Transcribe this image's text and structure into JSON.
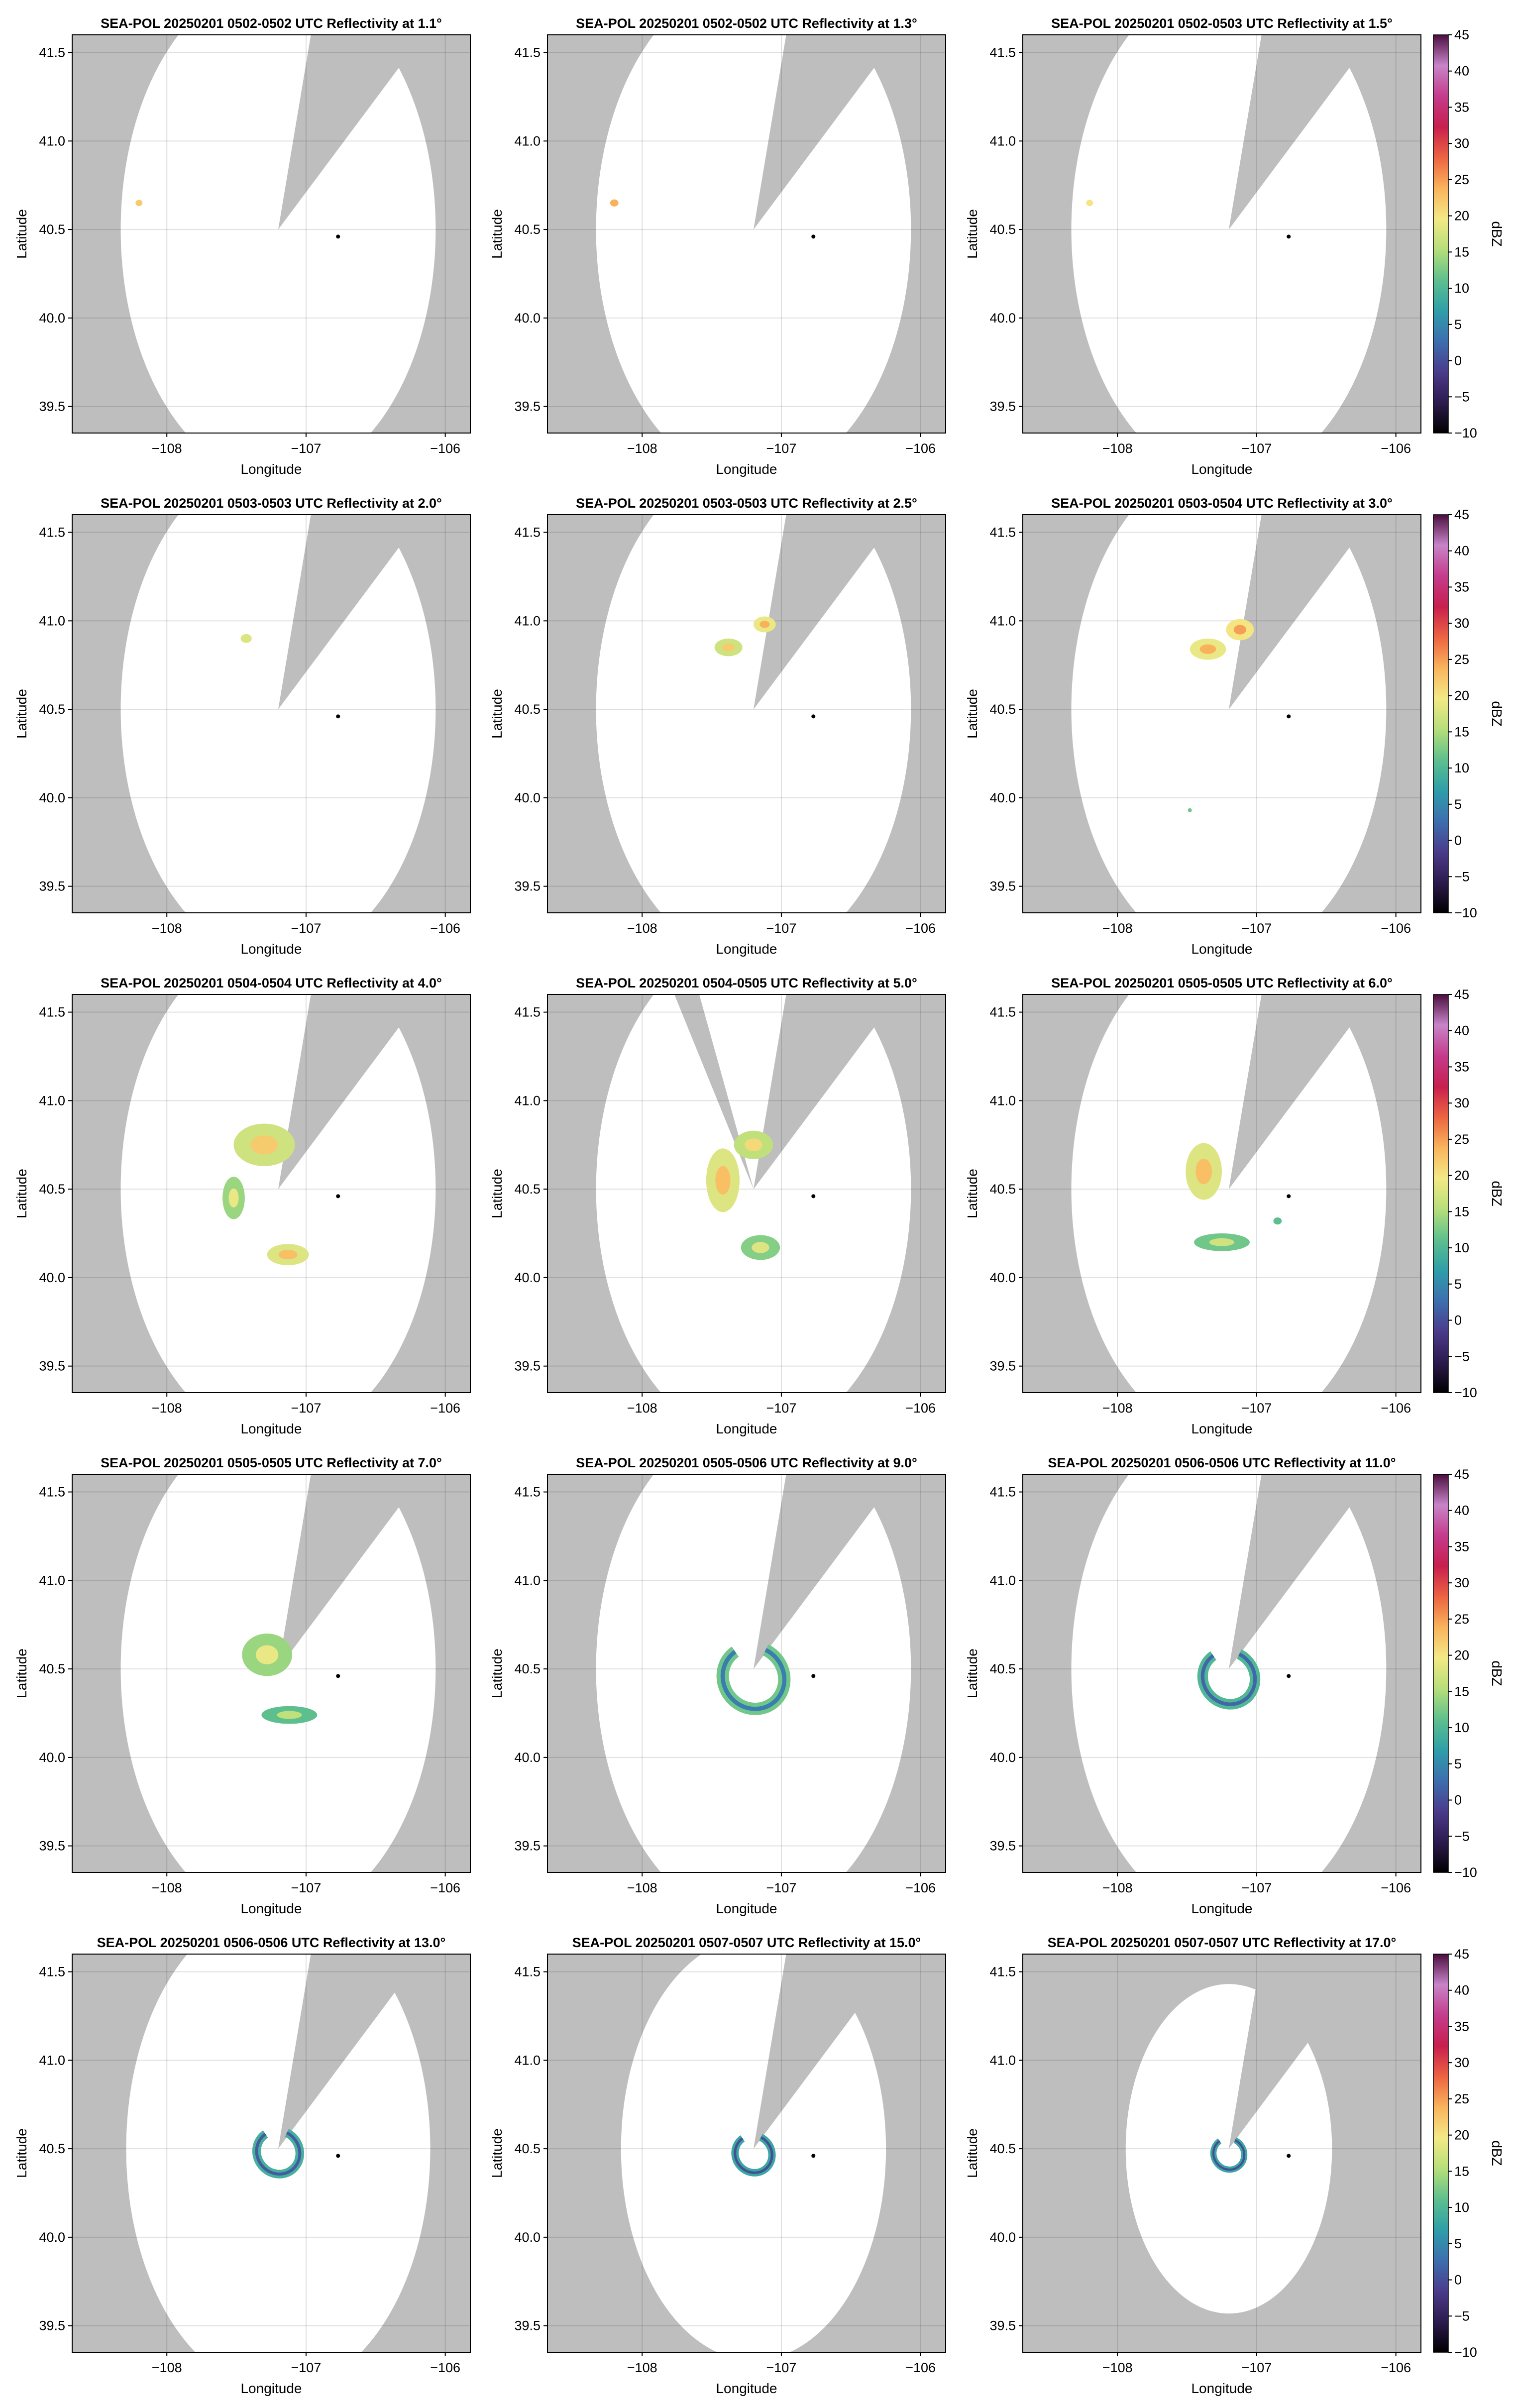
{
  "figure": {
    "xlabel": "Longitude",
    "ylabel": "Latitude",
    "xlim": [
      -108.68,
      -105.82
    ],
    "ylim": [
      39.35,
      41.6
    ],
    "x_ticks": [
      -108,
      -107,
      -106
    ],
    "x_tick_labels": [
      "−108",
      "−107",
      "−106"
    ],
    "y_ticks": [
      39.5,
      40.0,
      40.5,
      41.0,
      41.5
    ],
    "y_tick_labels": [
      "39.5",
      "40.0",
      "40.5",
      "41.0",
      "41.5"
    ],
    "background_color": "#bebebe",
    "coverage_color": "#ffffff",
    "grid": true,
    "radar_site": {
      "lon": -107.2,
      "lat": 40.5
    },
    "marker": {
      "lon": -106.77,
      "lat": 40.46
    },
    "blocked_sector_deg": [
      15,
      50
    ]
  },
  "colorbar": {
    "label": "dBZ",
    "min": -10,
    "max": 45,
    "ticks": [
      45,
      40,
      35,
      30,
      25,
      20,
      15,
      10,
      5,
      0,
      -5,
      -10
    ],
    "tick_labels": [
      "45",
      "40",
      "35",
      "30",
      "25",
      "20",
      "15",
      "10",
      "5",
      "0",
      "−5",
      "−10"
    ],
    "colormap_stops": [
      "#000000",
      "#2d1b4e",
      "#4a3c8c",
      "#3d6fb0",
      "#2f9fa8",
      "#5fc08d",
      "#b7df7a",
      "#f3e986",
      "#f9b45c",
      "#ec6442",
      "#c81f4e",
      "#c43c8c",
      "#c884c8",
      "#4a0e40"
    ]
  },
  "chart_data": [
    {
      "type": "heatmap",
      "title": "SEA-POL 20250201 0502-0502 UTC Reflectivity at 1.1°",
      "elevation_deg": 1.1,
      "echoes": [
        {
          "lon": -108.2,
          "lat": 40.65,
          "dlon": 0.025,
          "dlat": 0.018,
          "dbz": 22
        }
      ]
    },
    {
      "type": "heatmap",
      "title": "SEA-POL 20250201 0502-0502 UTC Reflectivity at 1.3°",
      "elevation_deg": 1.3,
      "echoes": [
        {
          "lon": -108.2,
          "lat": 40.65,
          "dlon": 0.03,
          "dlat": 0.02,
          "dbz": 24
        }
      ]
    },
    {
      "type": "heatmap",
      "title": "SEA-POL 20250201 0502-0503 UTC Reflectivity at 1.5°",
      "elevation_deg": 1.5,
      "echoes": [
        {
          "lon": -108.2,
          "lat": 40.65,
          "dlon": 0.025,
          "dlat": 0.018,
          "dbz": 20
        }
      ]
    },
    {
      "type": "heatmap",
      "title": "SEA-POL 20250201 0503-0503 UTC Reflectivity at 2.0°",
      "elevation_deg": 2.0,
      "echoes": [
        {
          "lon": -107.43,
          "lat": 40.9,
          "dlon": 0.04,
          "dlat": 0.025,
          "dbz": 18
        }
      ]
    },
    {
      "type": "heatmap",
      "title": "SEA-POL 20250201 0503-0503 UTC Reflectivity at 2.5°",
      "elevation_deg": 2.5,
      "echoes": [
        {
          "lon": -107.38,
          "lat": 40.85,
          "dlon": 0.1,
          "dlat": 0.05,
          "dbz": 17
        },
        {
          "lon": -107.12,
          "lat": 40.98,
          "dlon": 0.08,
          "dlat": 0.045,
          "dbz": 19
        }
      ]
    },
    {
      "type": "heatmap",
      "title": "SEA-POL 20250201 0503-0504 UTC Reflectivity at 3.0°",
      "elevation_deg": 3.0,
      "echoes": [
        {
          "lon": -107.35,
          "lat": 40.84,
          "dlon": 0.13,
          "dlat": 0.06,
          "dbz": 19
        },
        {
          "lon": -107.12,
          "lat": 40.95,
          "dlon": 0.1,
          "dlat": 0.06,
          "dbz": 20
        },
        {
          "lon": -107.48,
          "lat": 39.93,
          "dlon": 0.01,
          "dlat": 0.01,
          "dbz": 12
        }
      ]
    },
    {
      "type": "heatmap",
      "title": "SEA-POL 20250201 0504-0504 UTC Reflectivity at 4.0°",
      "elevation_deg": 4.0,
      "echoes": [
        {
          "lon": -107.3,
          "lat": 40.75,
          "dlon": 0.22,
          "dlat": 0.12,
          "dbz": 17
        },
        {
          "lon": -107.52,
          "lat": 40.45,
          "dlon": 0.08,
          "dlat": 0.12,
          "dbz": 14
        },
        {
          "lon": -107.13,
          "lat": 40.13,
          "dlon": 0.15,
          "dlat": 0.06,
          "dbz": 18
        }
      ]
    },
    {
      "type": "heatmap",
      "title": "SEA-POL 20250201 0504-0505 UTC Reflectivity at 5.0°",
      "elevation_deg": 5.0,
      "second_gap_deg": [
        -33,
        -24
      ],
      "echoes": [
        {
          "lon": -107.42,
          "lat": 40.55,
          "dlon": 0.12,
          "dlat": 0.18,
          "dbz": 18
        },
        {
          "lon": -107.2,
          "lat": 40.75,
          "dlon": 0.14,
          "dlat": 0.08,
          "dbz": 16
        },
        {
          "lon": -107.15,
          "lat": 40.17,
          "dlon": 0.14,
          "dlat": 0.07,
          "dbz": 13
        }
      ]
    },
    {
      "type": "heatmap",
      "title": "SEA-POL 20250201 0505-0505 UTC Reflectivity at 6.0°",
      "elevation_deg": 6.0,
      "echoes": [
        {
          "lon": -107.38,
          "lat": 40.6,
          "dlon": 0.13,
          "dlat": 0.16,
          "dbz": 18
        },
        {
          "lon": -107.25,
          "lat": 40.2,
          "dlon": 0.2,
          "dlat": 0.05,
          "dbz": 12
        },
        {
          "lon": -106.85,
          "lat": 40.32,
          "dlon": 0.03,
          "dlat": 0.02,
          "dbz": 11
        }
      ]
    },
    {
      "type": "heatmap",
      "title": "SEA-POL 20250201 0505-0505 UTC Reflectivity at 7.0°",
      "elevation_deg": 7.0,
      "echoes": [
        {
          "lon": -107.28,
          "lat": 40.58,
          "dlon": 0.18,
          "dlat": 0.12,
          "dbz": 14
        },
        {
          "lon": -107.12,
          "lat": 40.24,
          "dlon": 0.2,
          "dlat": 0.05,
          "dbz": 11
        }
      ]
    },
    {
      "type": "heatmap",
      "title": "SEA-POL 20250201 0505-0506 UTC Reflectivity at 9.0°",
      "elevation_deg": 9.0,
      "echoes": [
        {
          "lon": -107.2,
          "lat": 40.45,
          "radius_deg": 0.2,
          "ring": true,
          "dbz": 12
        }
      ]
    },
    {
      "type": "heatmap",
      "title": "SEA-POL 20250201 0506-0506 UTC Reflectivity at 11.0°",
      "elevation_deg": 11.0,
      "echoes": [
        {
          "lon": -107.2,
          "lat": 40.45,
          "radius_deg": 0.17,
          "ring": true,
          "dbz": 10
        }
      ]
    },
    {
      "type": "heatmap",
      "title": "SEA-POL 20250201 0506-0506 UTC Reflectivity at 13.0°",
      "elevation_deg": 13.0,
      "coverage_radius_deg": 1.4,
      "echoes": [
        {
          "lon": -107.2,
          "lat": 40.48,
          "radius_deg": 0.14,
          "ring": true,
          "dbz": 9
        }
      ]
    },
    {
      "type": "heatmap",
      "title": "SEA-POL 20250201 0507-0507 UTC Reflectivity at 15.0°",
      "elevation_deg": 15.0,
      "coverage_radius_deg": 1.22,
      "echoes": [
        {
          "lon": -107.2,
          "lat": 40.47,
          "radius_deg": 0.12,
          "ring": true,
          "dbz": 8
        }
      ]
    },
    {
      "type": "heatmap",
      "title": "SEA-POL 20250201 0507-0507 UTC Reflectivity at 17.0°",
      "elevation_deg": 17.0,
      "coverage_radius_deg": 0.95,
      "echoes": [
        {
          "lon": -107.2,
          "lat": 40.47,
          "radius_deg": 0.1,
          "ring": true,
          "dbz": 8
        }
      ]
    }
  ]
}
